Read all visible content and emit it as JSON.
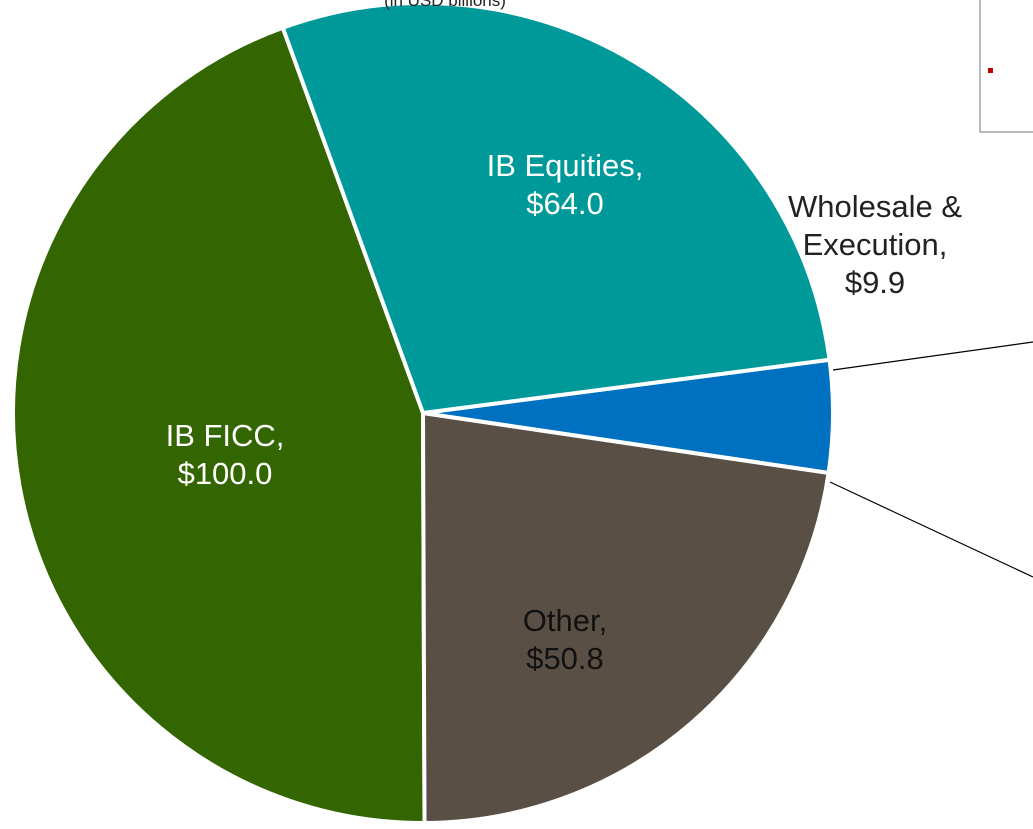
{
  "chart_data": {
    "type": "pie",
    "subtitle": "(in USD billions)",
    "categories": [
      "IB Equities,",
      "Wholesale & Execution,",
      "Other,",
      "IB FICC,"
    ],
    "values": [
      64.0,
      9.9,
      50.8,
      100.0
    ],
    "value_labels": [
      "$64.0",
      "$9.9",
      "$50.8",
      "$100.0"
    ],
    "colors": [
      "#009999",
      "#0070c0",
      "#594f45",
      "#336600"
    ]
  }
}
